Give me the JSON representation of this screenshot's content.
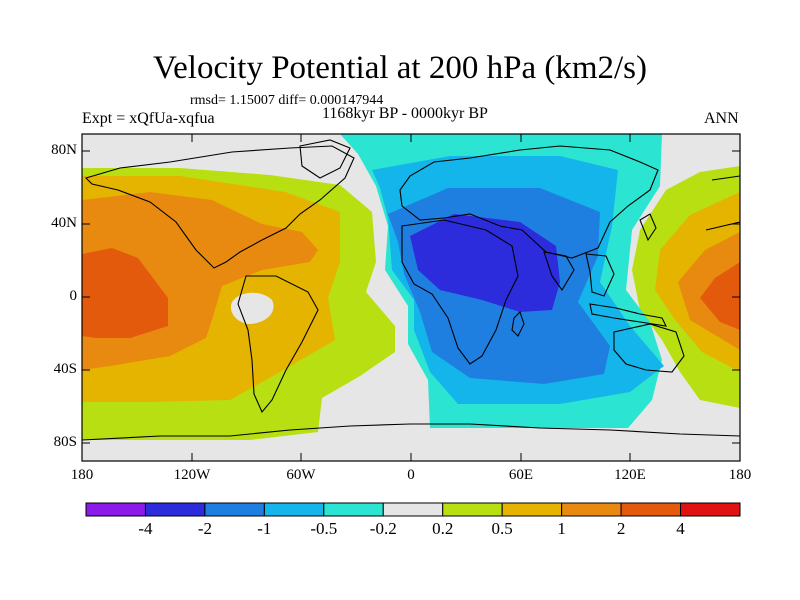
{
  "title": "Velocity Potential at 200 hPa (km2/s)",
  "stats_line": "rmsd= 1.15007 diff= 0.000147944",
  "experiment": "Expt = xQfUa-xqfua",
  "period": "1168kyr BP - 0000kyr BP",
  "season": "ANN",
  "lat_ticks": [
    "80N",
    "40N",
    "0",
    "40S",
    "80S"
  ],
  "lon_ticks": [
    "180",
    "120W",
    "60W",
    "0",
    "60E",
    "120E",
    "180"
  ],
  "colorbar": {
    "colors": [
      "#8a1be8",
      "#2c2cdd",
      "#1f7fe0",
      "#14b5ea",
      "#2ce4d2",
      "#e6e6e6",
      "#b8df12",
      "#e5b400",
      "#e98a10",
      "#e45a0c",
      "#e01212"
    ],
    "labels": [
      "-4",
      "-2",
      "-1",
      "-0.5",
      "-0.2",
      "0.2",
      "0.5",
      "1",
      "2",
      "4"
    ]
  }
}
